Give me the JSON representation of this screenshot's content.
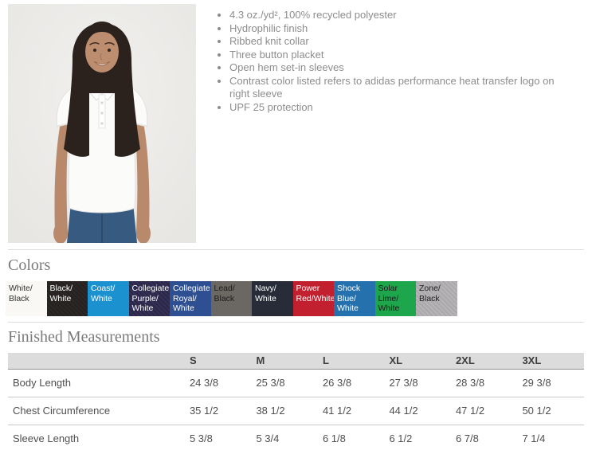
{
  "product": {
    "photo_description": "Model wearing a white short-sleeve polo shirt with navy pants",
    "features": [
      "4.3 oz./yd², 100% recycled polyester",
      "Hydrophilic finish",
      "Ribbed knit collar",
      "Three button placket",
      "Open hem set-in sleeves",
      "Contrast color listed refers to adidas performance heat transfer logo on right sleeve",
      "UPF 25 protection"
    ]
  },
  "colors": {
    "title": "Colors",
    "swatches": [
      {
        "name": "White/Black",
        "bg": "#faf8f4",
        "text_color": "#333333",
        "lines": [
          "White/",
          "Black"
        ]
      },
      {
        "name": "Black/White",
        "bg": "#2b2826",
        "texture_color": "#242120",
        "text_color": "#ffffff",
        "lines": [
          "Black/",
          "White"
        ]
      },
      {
        "name": "Coast/White",
        "bg": "#1b92cf",
        "text_color": "#ffffff",
        "lines": [
          "Coast/",
          "White"
        ]
      },
      {
        "name": "Collegiate Purple/White",
        "bg": "#343057",
        "texture_color": "#2b2747",
        "text_color": "#ffffff",
        "lines": [
          "Collegiate",
          "Purple/",
          "White"
        ]
      },
      {
        "name": "Collegiate Royal/White",
        "bg": "#2e4f92",
        "text_color": "#ffffff",
        "lines": [
          "Collegiate",
          "Royal/",
          "White"
        ]
      },
      {
        "name": "Lead/Black",
        "bg": "#6b6762",
        "text_color": "#1c1c1c",
        "lines": [
          "Lead/",
          "Black"
        ]
      },
      {
        "name": "Navy/White",
        "bg": "#272c38",
        "text_color": "#ffffff",
        "lines": [
          "Navy/",
          "White"
        ]
      },
      {
        "name": "Power Red/White",
        "bg": "#c2202f",
        "text_color": "#ffffff",
        "lines": [
          "Power",
          "Red/White"
        ]
      },
      {
        "name": "Shock Blue/White",
        "bg": "#2471ae",
        "text_color": "#ffffff",
        "lines": [
          "Shock",
          "Blue/",
          "White"
        ]
      },
      {
        "name": "Solar Lime/White",
        "bg": "#1da64c",
        "text_color": "#1a1a1a",
        "lines": [
          "Solar",
          "Lime/",
          "White"
        ]
      },
      {
        "name": "Zone/Black",
        "bg": "#b6b4b6",
        "texture_color": "#aaa8aa",
        "text_color": "#222222",
        "lines": [
          "Zone/",
          "Black"
        ]
      }
    ]
  },
  "measurements": {
    "title": "Finished Measurements",
    "columns": [
      "",
      "S",
      "M",
      "L",
      "XL",
      "2XL",
      "3XL"
    ],
    "rows": [
      {
        "label": "Body Length",
        "values": [
          "24 3/8",
          "25 3/8",
          "26 3/8",
          "27 3/8",
          "28 3/8",
          "29 3/8"
        ]
      },
      {
        "label": "Chest Circumference",
        "values": [
          "35 1/2",
          "38 1/2",
          "41 1/2",
          "44 1/2",
          "47 1/2",
          "50 1/2"
        ]
      },
      {
        "label": "Sleeve Length",
        "values": [
          "5 3/8",
          "5 3/4",
          "6 1/8",
          "6 1/2",
          "6 7/8",
          "7 1/4"
        ]
      }
    ]
  }
}
